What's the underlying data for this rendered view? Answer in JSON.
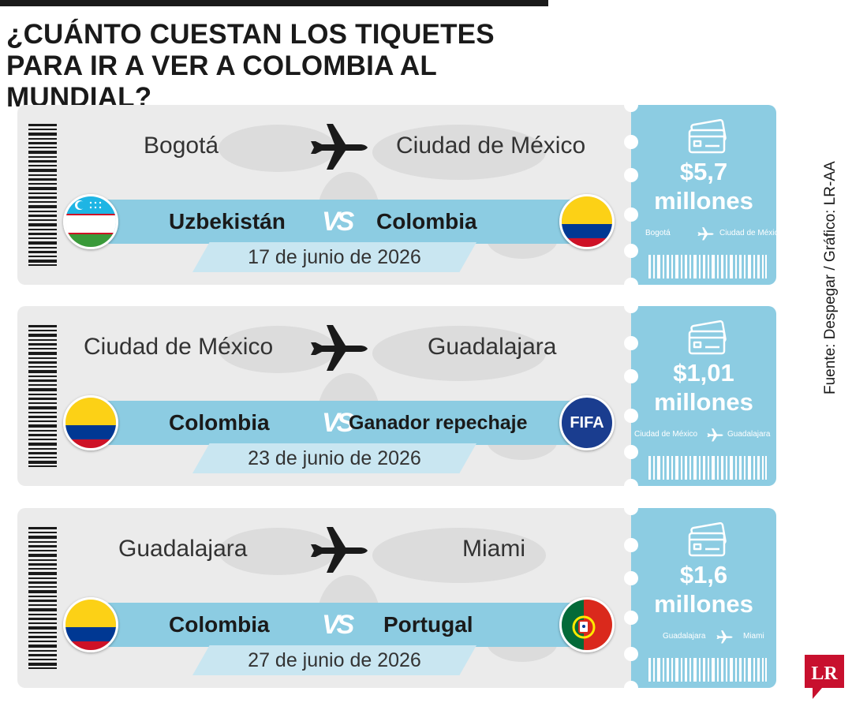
{
  "title": "¿CUÁNTO CUESTAN LOS TIQUETES PARA IR A VER A COLOMBIA AL MUNDIAL?",
  "colors": {
    "ticket_blue": "#8ccce2",
    "strip_blue": "#c9e6f1",
    "ticket_gray": "#ebebeb",
    "text_dark": "#1a1a1a",
    "logo_red": "#c8102e"
  },
  "vs_label": "VS",
  "tickets": [
    {
      "from": "Bogotá",
      "to": "Ciudad de México",
      "team_left": "Uzbekistán",
      "team_right": "Colombia",
      "flag_left": "uzbekistan-flag",
      "flag_right": "colombia-flag",
      "date": "17 de junio de 2026",
      "price": "$5,7 millones",
      "mini_from": "Bogotá",
      "mini_to": "Ciudad de México"
    },
    {
      "from": "Ciudad de México",
      "to": "Guadalajara",
      "team_left": "Colombia",
      "team_right": "Ganador repechaje",
      "flag_left": "colombia-flag",
      "flag_right": "fifa-badge",
      "flag_right_text": "FIFA",
      "date": "23 de junio de 2026",
      "price": "$1,01 millones",
      "mini_from": "Ciudad de México",
      "mini_to": "Guadalajara"
    },
    {
      "from": "Guadalajara",
      "to": "Miami",
      "team_left": "Colombia",
      "team_right": "Portugal",
      "flag_left": "colombia-flag",
      "flag_right": "portugal-flag",
      "date": "27 de junio de 2026",
      "price": "$1,6 millones",
      "mini_from": "Guadalajara",
      "mini_to": "Miami"
    }
  ],
  "source": "Fuente: Despegar / Gráfico: LR-AA",
  "logo_text": "LR"
}
